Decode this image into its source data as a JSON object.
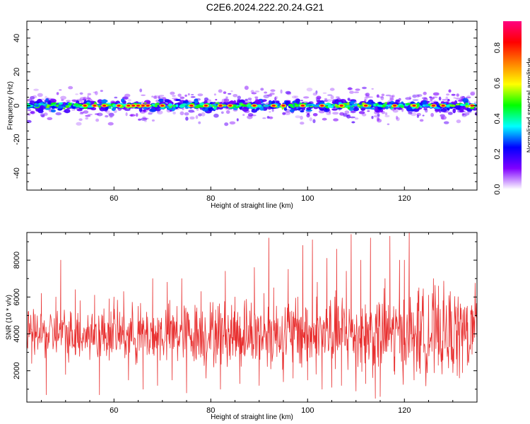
{
  "title": "C2E6.2024.222.20.24.G21",
  "colors": {
    "snr_line": "#e83030",
    "colorbar": [
      "#ffffff",
      "#8000ff",
      "#0000ff",
      "#00ffff",
      "#00ff00",
      "#ffff00",
      "#ff8000",
      "#ff0000",
      "#ff0080"
    ]
  },
  "chart_data": [
    {
      "type": "heatmap",
      "title": "C2E6.2024.222.20.24.G21",
      "xlabel": "Height of straight line (km)",
      "ylabel": "Frequency (Hz)",
      "xlim": [
        42,
        135
      ],
      "ylim": [
        -50,
        50
      ],
      "xticks": [
        60,
        80,
        100,
        120
      ],
      "yticks": [
        -40,
        -20,
        0,
        20,
        40
      ],
      "colorbar": {
        "label": "Normalized spectral amplitude",
        "range": [
          0.0,
          0.95
        ],
        "ticks": [
          0.0,
          0.2,
          0.4,
          0.6,
          0.8
        ],
        "tick_labels": [
          "0.0",
          "0.2",
          "0.4",
          "0.6",
          "0.8"
        ]
      },
      "band": {
        "center_hz": 0,
        "core_halfwidth_hz": 2,
        "spread_halfwidth_hz": 8
      },
      "hotspots_km": [
        54,
        56,
        58,
        61,
        63,
        64,
        65,
        66,
        67,
        70,
        76,
        79,
        82,
        84,
        89,
        93,
        95,
        99,
        103,
        107,
        112,
        118,
        122,
        126,
        128,
        134
      ]
    },
    {
      "type": "line",
      "xlabel": "Height of straight line (km)",
      "ylabel": "SNR (10 * v/v)",
      "xlim": [
        42,
        135
      ],
      "ylim": [
        300,
        9500
      ],
      "xticks": [
        60,
        80,
        100,
        120
      ],
      "yticks": [
        2000,
        4000,
        6000,
        8000
      ],
      "mean": 4000,
      "series": [
        {
          "points": [
            [
              42,
              4200
            ],
            [
              43,
              2400
            ],
            [
              45,
              6200
            ],
            [
              46,
              700
            ],
            [
              48,
              6000
            ],
            [
              49,
              8000
            ],
            [
              50,
              1800
            ],
            [
              52,
              6400
            ],
            [
              53,
              5800
            ],
            [
              55,
              2600
            ],
            [
              56,
              6100
            ],
            [
              57,
              700
            ],
            [
              59,
              5900
            ],
            [
              60,
              6000
            ],
            [
              62,
              6300
            ],
            [
              63,
              1500
            ],
            [
              65,
              5500
            ],
            [
              66,
              1000
            ],
            [
              68,
              7000
            ],
            [
              69,
              1200
            ],
            [
              71,
              6800
            ],
            [
              72,
              1500
            ],
            [
              73,
              5500
            ],
            [
              74,
              7000
            ],
            [
              75,
              800
            ],
            [
              77,
              5200
            ],
            [
              78,
              6300
            ],
            [
              79,
              1600
            ],
            [
              81,
              5300
            ],
            [
              82,
              1000
            ],
            [
              83,
              7400
            ],
            [
              85,
              6000
            ],
            [
              86,
              1300
            ],
            [
              87,
              5800
            ],
            [
              89,
              7600
            ],
            [
              90,
              1200
            ],
            [
              91,
              6200
            ],
            [
              92,
              9200
            ],
            [
              93,
              6500
            ],
            [
              95,
              1400
            ],
            [
              96,
              7500
            ],
            [
              97,
              1600
            ],
            [
              98,
              6000
            ],
            [
              99,
              8800
            ],
            [
              100,
              1500
            ],
            [
              101,
              9100
            ],
            [
              102,
              6800
            ],
            [
              103,
              1000
            ],
            [
              104,
              8100
            ],
            [
              105,
              1100
            ],
            [
              106,
              8600
            ],
            [
              107,
              1200
            ],
            [
              108,
              7400
            ],
            [
              109,
              9400
            ],
            [
              110,
              900
            ],
            [
              111,
              8000
            ],
            [
              112,
              1300
            ],
            [
              113,
              9200
            ],
            [
              114,
              500
            ],
            [
              115,
              600
            ],
            [
              116,
              7000
            ],
            [
              117,
              9300
            ],
            [
              118,
              1800
            ],
            [
              119,
              8000
            ],
            [
              120,
              8000
            ],
            [
              121,
              9500
            ],
            [
              122,
              1500
            ],
            [
              123,
              6500
            ],
            [
              124,
              3000
            ],
            [
              125,
              6100
            ],
            [
              126,
              7000
            ],
            [
              127,
              2300
            ],
            [
              128,
              5800
            ],
            [
              130,
              2300
            ],
            [
              131,
              5400
            ],
            [
              132,
              4600
            ],
            [
              133,
              2300
            ],
            [
              134,
              5300
            ],
            [
              135,
              4700
            ]
          ]
        }
      ]
    }
  ]
}
